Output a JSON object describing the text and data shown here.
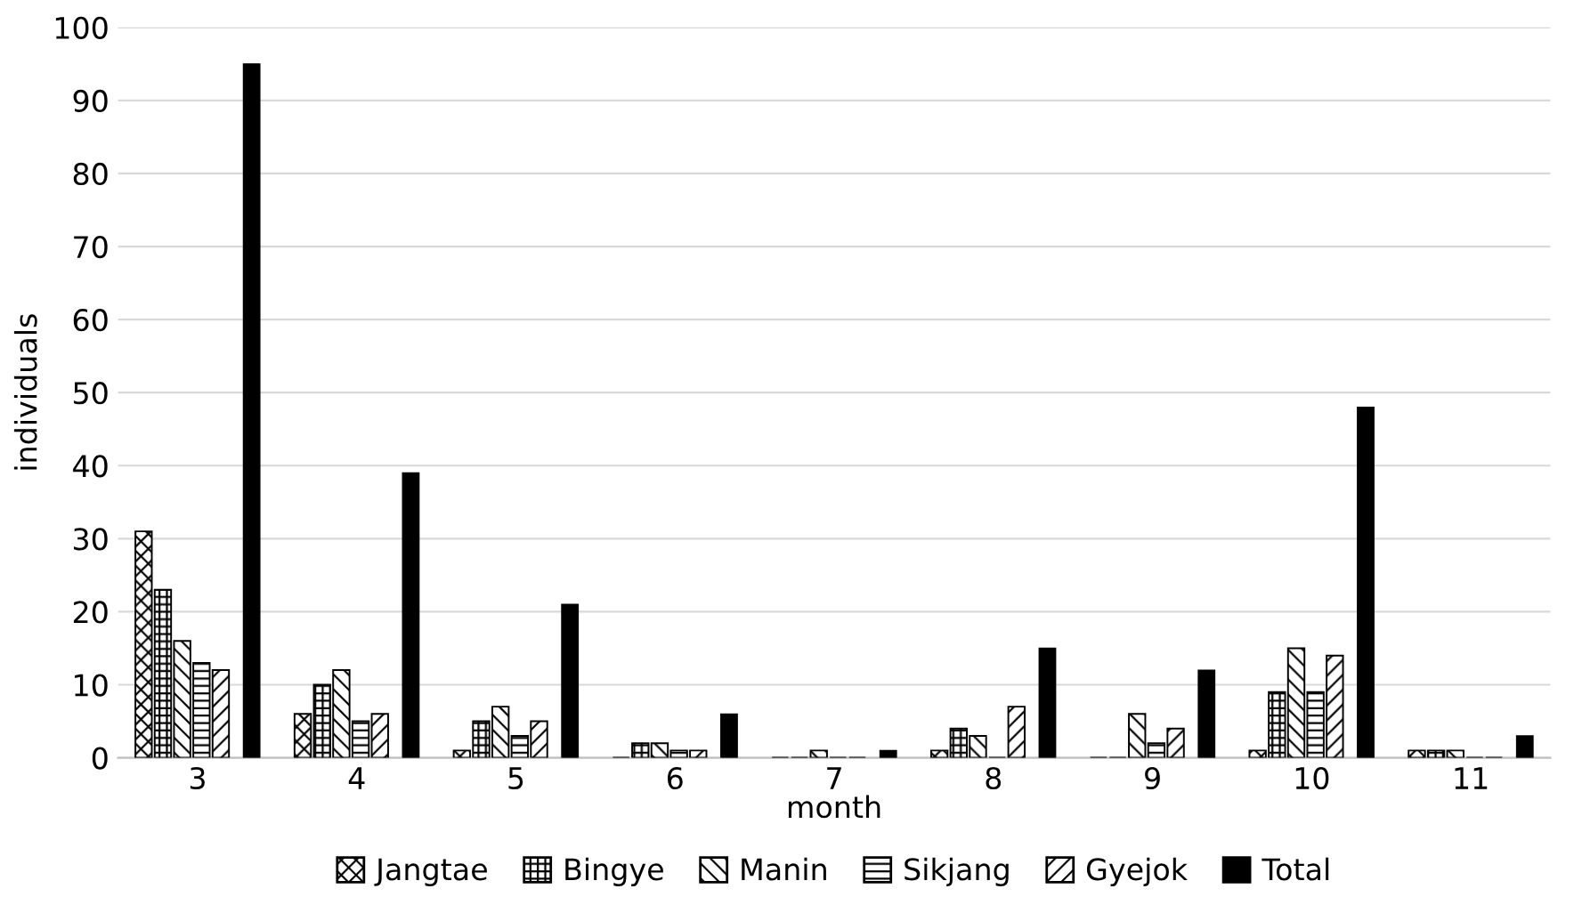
{
  "chart_data": {
    "type": "bar",
    "xlabel": "month",
    "ylabel": "individuals",
    "categories": [
      "3",
      "4",
      "5",
      "6",
      "7",
      "8",
      "9",
      "10",
      "11"
    ],
    "series": [
      {
        "name": "Jangtae",
        "color": "#000000",
        "values": [
          31,
          6,
          1,
          0,
          0,
          1,
          0,
          1,
          1
        ]
      },
      {
        "name": "Bingye",
        "color": "#000000",
        "values": [
          23,
          10,
          5,
          2,
          0,
          4,
          0,
          9,
          1
        ]
      },
      {
        "name": "Manin",
        "color": "#000000",
        "values": [
          16,
          12,
          7,
          2,
          1,
          3,
          6,
          15,
          1
        ]
      },
      {
        "name": "Sikjang",
        "color": "#000000",
        "values": [
          13,
          5,
          3,
          1,
          0,
          0,
          2,
          9,
          0
        ]
      },
      {
        "name": "Gyejok",
        "color": "#000000",
        "values": [
          12,
          6,
          5,
          1,
          0,
          7,
          4,
          14,
          0
        ]
      },
      {
        "name": "Total",
        "color": "#000000",
        "values": [
          95,
          39,
          21,
          6,
          1,
          15,
          12,
          48,
          3
        ]
      }
    ],
    "ylim": [
      0,
      100
    ],
    "yticks": [
      0,
      10,
      20,
      30,
      40,
      50,
      60,
      70,
      80,
      90,
      100
    ],
    "grid": "y",
    "legend": "bottom"
  }
}
